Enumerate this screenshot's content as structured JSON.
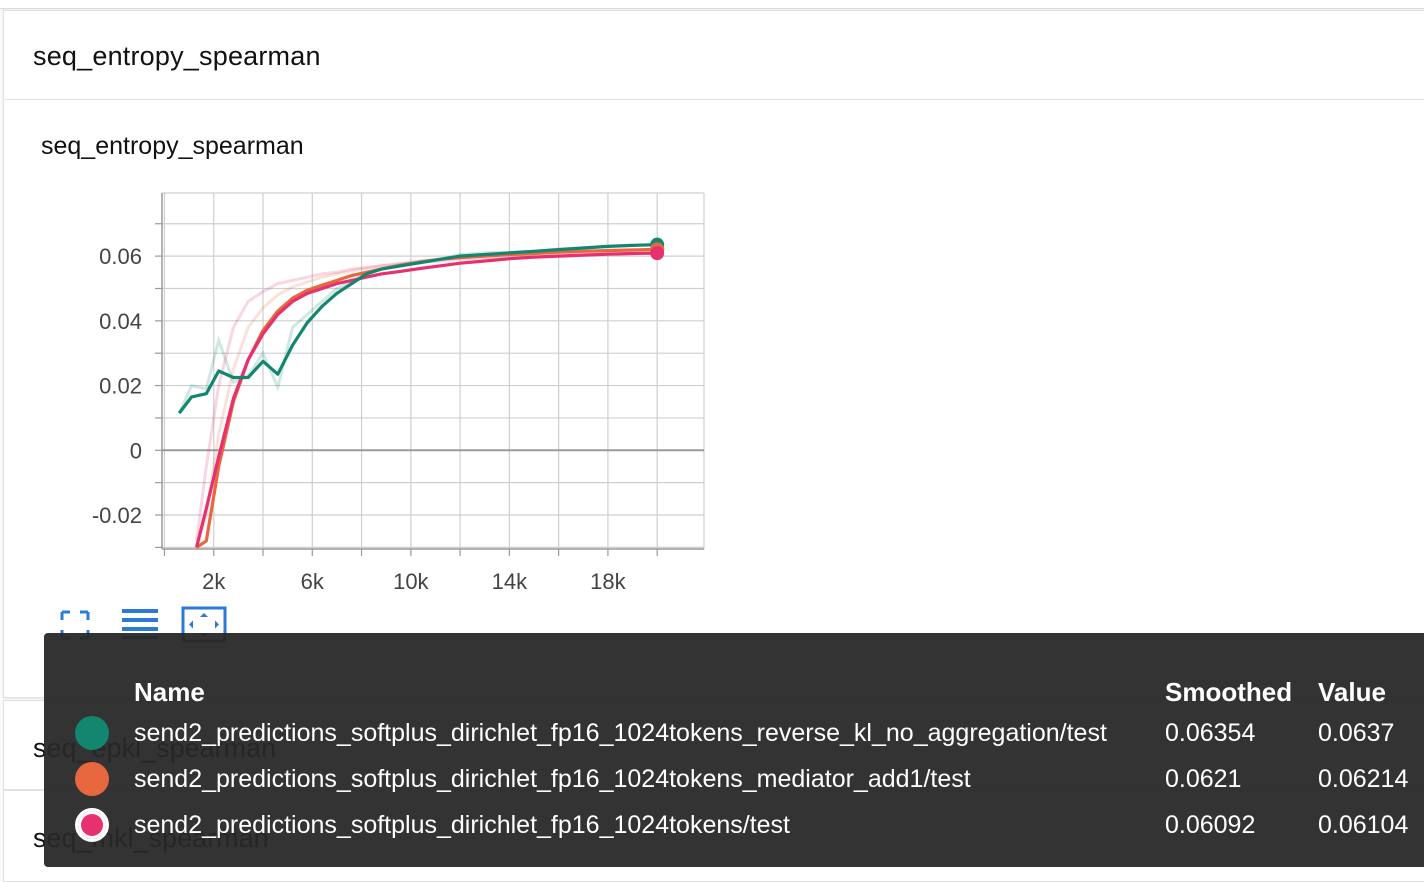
{
  "section": {
    "title": "seq_entropy_spearman"
  },
  "chart_card": {
    "title": "seq_entropy_spearman"
  },
  "chart_data": {
    "type": "line",
    "title": "seq_entropy_spearman",
    "xlabel": "",
    "ylabel": "",
    "xlim": [
      -100,
      21900
    ],
    "ylim": [
      -0.0305,
      0.0795
    ],
    "x_ticks": [
      "2k",
      "6k",
      "10k",
      "14k",
      "18k"
    ],
    "y_ticks": [
      "0.06",
      "0.04",
      "0.02",
      "0",
      "-0.02"
    ],
    "series": [
      {
        "name": "send2_predictions_softplus_dirichlet_fp16_1024tokens_reverse_kl_no_aggregation/test",
        "color": "#12866f",
        "x": [
          600,
          1100,
          1700,
          2200,
          2800,
          3400,
          4000,
          4600,
          5200,
          5800,
          6400,
          7000,
          7600,
          8200,
          8800,
          9600,
          10400,
          11200,
          12000,
          13000,
          14000,
          15000,
          16000,
          17000,
          18000,
          19000,
          20000
        ],
        "smoothed": [
          0.0115,
          0.0165,
          0.0175,
          0.0245,
          0.0225,
          0.0225,
          0.0275,
          0.0235,
          0.0325,
          0.0395,
          0.0445,
          0.0485,
          0.0515,
          0.0545,
          0.056,
          0.057,
          0.058,
          0.059,
          0.06,
          0.0605,
          0.061,
          0.0615,
          0.062,
          0.0625,
          0.063,
          0.0633,
          0.06354
        ],
        "raw": [
          0.0115,
          0.02,
          0.019,
          0.034,
          0.021,
          0.023,
          0.03,
          0.0195,
          0.038,
          0.042,
          0.046,
          0.05,
          0.052,
          0.055,
          0.056,
          0.0575,
          0.0585,
          0.059,
          0.0605,
          0.061,
          0.0612,
          0.0615,
          0.0622,
          0.0626,
          0.0631,
          0.0634,
          0.0637
        ]
      },
      {
        "name": "send2_predictions_softplus_dirichlet_fp16_1024tokens_mediator_add1/test",
        "color": "#e7673f",
        "x": [
          1300,
          1700,
          2200,
          2800,
          3400,
          4000,
          4600,
          5200,
          5800,
          6400,
          7000,
          7600,
          8200,
          8800,
          9600,
          10400,
          11200,
          12000,
          13000,
          14000,
          15000,
          16000,
          17000,
          18000,
          19000,
          20000
        ],
        "smoothed": [
          -0.03,
          -0.028,
          -0.005,
          0.015,
          0.028,
          0.037,
          0.043,
          0.047,
          0.0495,
          0.051,
          0.0525,
          0.054,
          0.055,
          0.056,
          0.0572,
          0.0582,
          0.059,
          0.0595,
          0.06,
          0.0605,
          0.0608,
          0.0612,
          0.0615,
          0.0617,
          0.0619,
          0.0621
        ],
        "raw": [
          -0.03,
          -0.02,
          0.005,
          0.025,
          0.038,
          0.044,
          0.048,
          0.0505,
          0.052,
          0.0535,
          0.0545,
          0.0555,
          0.0562,
          0.057,
          0.0578,
          0.0585,
          0.0592,
          0.0598,
          0.0603,
          0.0607,
          0.061,
          0.0614,
          0.0616,
          0.0618,
          0.062,
          0.06214
        ]
      },
      {
        "name": "send2_predictions_softplus_dirichlet_fp16_1024tokens/test",
        "color": "#e7306f",
        "x": [
          1300,
          1700,
          2200,
          2800,
          3400,
          4000,
          4600,
          5200,
          5800,
          6400,
          7000,
          7600,
          8200,
          8800,
          9600,
          10400,
          11200,
          12000,
          13000,
          14000,
          15000,
          16000,
          17000,
          18000,
          19000,
          20000
        ],
        "smoothed": [
          -0.03,
          -0.018,
          -0.002,
          0.016,
          0.028,
          0.036,
          0.042,
          0.046,
          0.0485,
          0.05,
          0.0515,
          0.0525,
          0.0535,
          0.0545,
          0.0553,
          0.0562,
          0.057,
          0.0578,
          0.0585,
          0.0592,
          0.0597,
          0.06,
          0.0603,
          0.0606,
          0.0608,
          0.06092
        ],
        "raw": [
          -0.028,
          -0.005,
          0.02,
          0.038,
          0.046,
          0.049,
          0.0515,
          0.0525,
          0.0535,
          0.0545,
          0.055,
          0.056,
          0.0565,
          0.057,
          0.0575,
          0.058,
          0.0585,
          0.059,
          0.0595,
          0.0598,
          0.06,
          0.0603,
          0.0605,
          0.0607,
          0.0609,
          0.06104
        ]
      }
    ]
  },
  "toolbar": {
    "fit_icon": "fit-to-screen-icon",
    "log_icon": "log-scale-icon",
    "zoom_icon": "zoom-extent-icon"
  },
  "collapsed": [
    {
      "title": "seq_epkl_spearman"
    },
    {
      "title": "seq_mkl_spearman"
    }
  ],
  "tooltip": {
    "headers": {
      "name": "Name",
      "smoothed": "Smoothed",
      "value": "Value"
    },
    "rows": [
      {
        "name": "send2_predictions_softplus_dirichlet_fp16_1024tokens_reverse_kl_no_aggregation/test",
        "smoothed": "0.06354",
        "value": "0.0637",
        "color": "#12866f"
      },
      {
        "name": "send2_predictions_softplus_dirichlet_fp16_1024tokens_mediator_add1/test",
        "smoothed": "0.0621",
        "value": "0.06214",
        "color": "#e7673f"
      },
      {
        "name": "send2_predictions_softplus_dirichlet_fp16_1024tokens/test",
        "smoothed": "0.06092",
        "value": "0.06104",
        "color": "#e7306f"
      }
    ]
  }
}
